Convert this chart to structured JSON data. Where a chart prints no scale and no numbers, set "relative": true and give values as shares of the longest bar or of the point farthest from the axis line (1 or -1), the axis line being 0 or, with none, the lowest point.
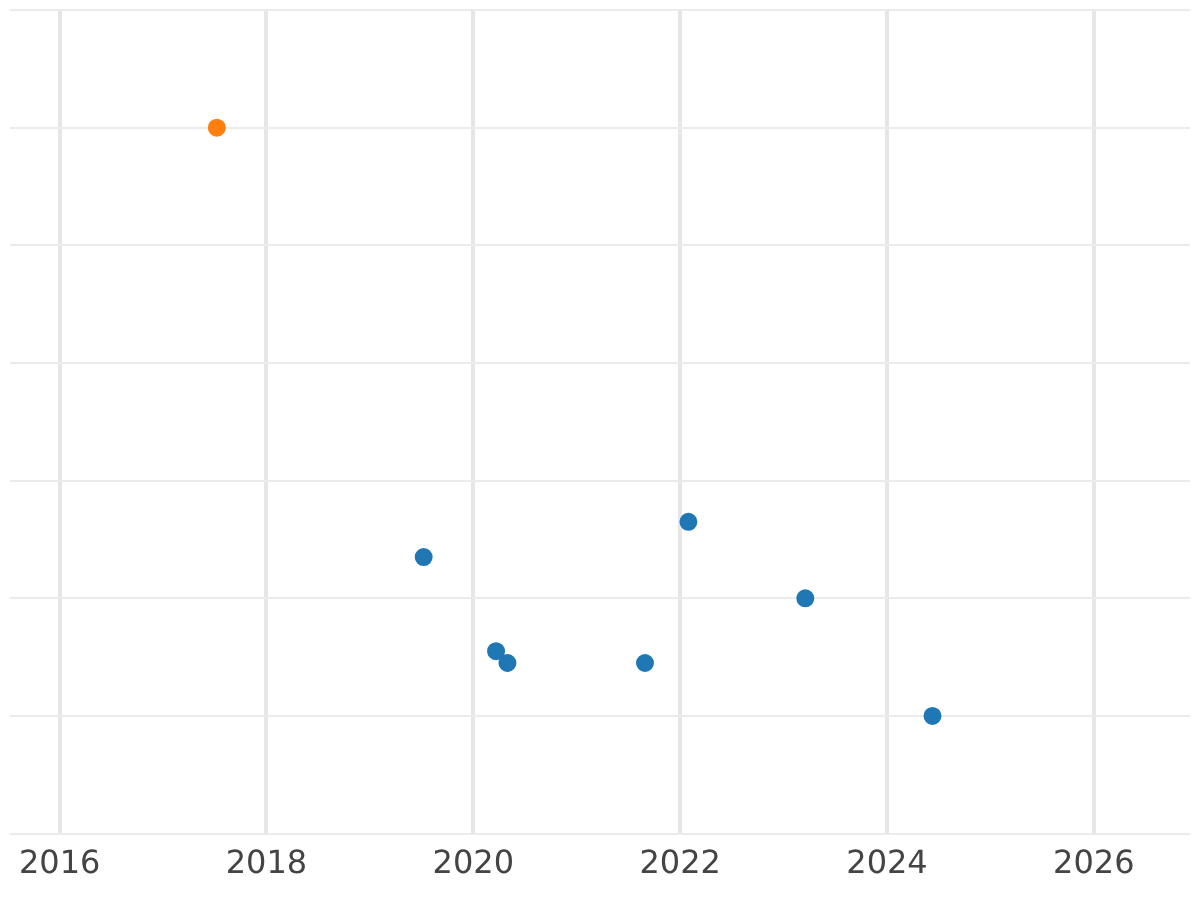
{
  "chart_data": {
    "type": "scatter",
    "relative": true,
    "xlim": [
      2015.52,
      2026.93
    ],
    "xticks": [
      2016,
      2018,
      2020,
      2022,
      2024,
      2026
    ],
    "grid": true,
    "marker": "circle",
    "series": [
      {
        "color": "#ff7f0e",
        "x": [
          2017.52
        ],
        "values": [
          1
        ]
      },
      {
        "color": "#1f77b4",
        "x": [
          2019.52,
          2020.22,
          2020.33,
          2021.66,
          2022.08,
          2023.21,
          2024.44
        ],
        "values": [
          0.27,
          0.11,
          0.09,
          0.09,
          0.33,
          0.2,
          0
        ]
      }
    ]
  }
}
